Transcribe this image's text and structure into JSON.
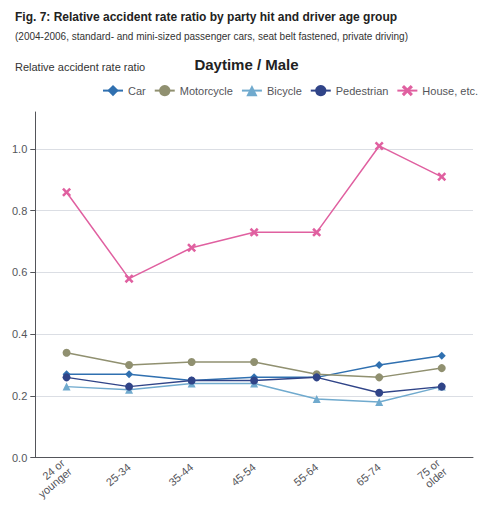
{
  "chart_data": {
    "type": "line",
    "title": "Fig. 7: Relative accident rate ratio by party hit and driver age group",
    "subtitle": "(2004-2006, standard- and mini-sized passenger cars, seat belt fastened, private driving)",
    "annotations": [
      "Daytime / Male"
    ],
    "y_label": "Relative accident rate ratio",
    "categories": [
      "24 or\nyounger",
      "25-34",
      "35-44",
      "45-54",
      "55-64",
      "65-74",
      "75 or\nolder"
    ],
    "series": [
      {
        "name": "Car",
        "color": "#3070B0",
        "marker": "diamond",
        "values": [
          0.27,
          0.27,
          0.25,
          0.26,
          0.26,
          0.3,
          0.33
        ]
      },
      {
        "name": "Motorcycle",
        "color": "#909070",
        "marker": "circle",
        "values": [
          0.34,
          0.3,
          0.31,
          0.31,
          0.27,
          0.26,
          0.29
        ]
      },
      {
        "name": "Bicycle",
        "color": "#70AACE",
        "marker": "triangle",
        "values": [
          0.23,
          0.22,
          0.24,
          0.24,
          0.19,
          0.18,
          0.23
        ]
      },
      {
        "name": "Pedestrian",
        "color": "#304488",
        "marker": "circle",
        "values": [
          0.26,
          0.23,
          0.25,
          0.25,
          0.26,
          0.21,
          0.23
        ]
      },
      {
        "name": "House, etc.",
        "color": "#E060A0",
        "marker": "x",
        "values": [
          0.86,
          0.58,
          0.68,
          0.73,
          0.73,
          1.01,
          0.91
        ]
      }
    ],
    "ylim": [
      0.0,
      1.12
    ],
    "yticks": [
      {
        "value": 0,
        "label": "0.0"
      },
      0.2,
      0.4,
      0.6,
      0.8,
      {
        "value": 1,
        "label": "1.0"
      }
    ],
    "grid": true,
    "legend": "upper right"
  }
}
